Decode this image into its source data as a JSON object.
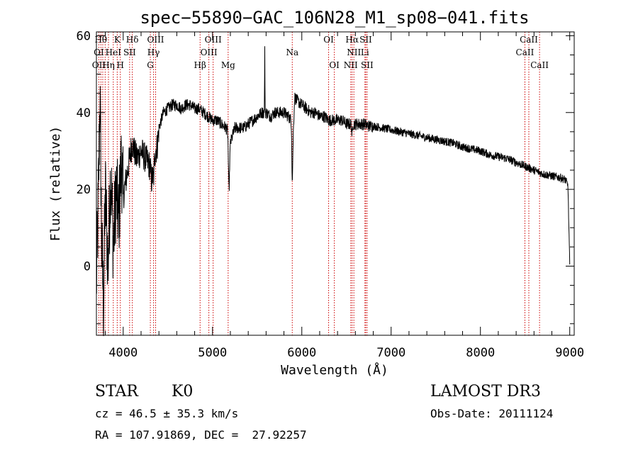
{
  "chart_data": {
    "type": "line",
    "title": "spec−55890−GAC_106N28_M1_sp08−041.fits",
    "xlabel": "Wavelength (Å)",
    "ylabel": "Flux (relative)",
    "xlim": [
      3700,
      9050
    ],
    "ylim": [
      -18,
      61
    ],
    "xticks": [
      4000,
      5000,
      6000,
      7000,
      8000,
      9000
    ],
    "yticks": [
      0,
      20,
      40,
      60
    ],
    "series": [
      {
        "name": "flux",
        "anchors": [
          [
            3700,
            -5
          ],
          [
            3720,
            15
          ],
          [
            3740,
            45
          ],
          [
            3760,
            5
          ],
          [
            3780,
            -10
          ],
          [
            3800,
            20
          ],
          [
            3830,
            0
          ],
          [
            3860,
            25
          ],
          [
            3890,
            5
          ],
          [
            3920,
            20
          ],
          [
            3950,
            12
          ],
          [
            3980,
            28
          ],
          [
            4000,
            18
          ],
          [
            4050,
            25
          ],
          [
            4100,
            32
          ],
          [
            4150,
            28
          ],
          [
            4200,
            30
          ],
          [
            4250,
            28
          ],
          [
            4300,
            26
          ],
          [
            4320,
            22
          ],
          [
            4340,
            29
          ],
          [
            4380,
            31
          ],
          [
            4400,
            36
          ],
          [
            4450,
            40
          ],
          [
            4500,
            41
          ],
          [
            4550,
            42
          ],
          [
            4600,
            42
          ],
          [
            4650,
            41
          ],
          [
            4700,
            42
          ],
          [
            4750,
            42
          ],
          [
            4800,
            41
          ],
          [
            4850,
            41
          ],
          [
            4900,
            40
          ],
          [
            4950,
            39
          ],
          [
            5000,
            38
          ],
          [
            5050,
            38
          ],
          [
            5100,
            37
          ],
          [
            5150,
            36
          ],
          [
            5175,
            35
          ],
          [
            5190,
            28
          ],
          [
            5200,
            32
          ],
          [
            5250,
            36
          ],
          [
            5300,
            36
          ],
          [
            5350,
            36
          ],
          [
            5400,
            37
          ],
          [
            5450,
            38
          ],
          [
            5500,
            39
          ],
          [
            5550,
            40
          ],
          [
            5600,
            40
          ],
          [
            5650,
            39
          ],
          [
            5700,
            40
          ],
          [
            5750,
            40
          ],
          [
            5800,
            40
          ],
          [
            5850,
            39
          ],
          [
            5880,
            38
          ],
          [
            5900,
            32
          ],
          [
            5920,
            44
          ],
          [
            5950,
            43
          ],
          [
            6000,
            42
          ],
          [
            6050,
            41
          ],
          [
            6100,
            40
          ],
          [
            6150,
            40
          ],
          [
            6200,
            39
          ],
          [
            6250,
            39
          ],
          [
            6300,
            38
          ],
          [
            6350,
            38
          ],
          [
            6400,
            38
          ],
          [
            6450,
            38
          ],
          [
            6500,
            37
          ],
          [
            6550,
            37
          ],
          [
            6600,
            37
          ],
          [
            6650,
            37
          ],
          [
            6700,
            37
          ],
          [
            6750,
            36.5
          ],
          [
            6800,
            36.5
          ],
          [
            6900,
            36
          ],
          [
            7000,
            35.5
          ],
          [
            7100,
            35
          ],
          [
            7200,
            34.5
          ],
          [
            7300,
            34
          ],
          [
            7400,
            33.5
          ],
          [
            7500,
            33
          ],
          [
            7600,
            32.5
          ],
          [
            7700,
            32
          ],
          [
            7800,
            31
          ],
          [
            7900,
            30.5
          ],
          [
            8000,
            30
          ],
          [
            8100,
            29
          ],
          [
            8200,
            28.5
          ],
          [
            8300,
            28
          ],
          [
            8400,
            27
          ],
          [
            8500,
            26
          ],
          [
            8600,
            25
          ],
          [
            8700,
            24
          ],
          [
            8800,
            23.5
          ],
          [
            8900,
            23
          ],
          [
            8950,
            22.5
          ],
          [
            8980,
            21
          ],
          [
            9000,
            0
          ]
        ],
        "narrow_features": [
          {
            "center": 5585,
            "depth": -16,
            "width": 3
          },
          {
            "center": 5893,
            "depth": 12,
            "width": 6
          },
          {
            "center": 5183,
            "depth": 11,
            "width": 8
          },
          {
            "center": 4340,
            "depth": 6,
            "width": 10
          },
          {
            "center": 6563,
            "depth": 3,
            "width": 6
          }
        ]
      }
    ],
    "line_markers": {
      "color": "#cc0000",
      "wavelengths": [
        3727,
        3750,
        3771,
        3798,
        3835,
        3889,
        3933,
        3968,
        4072,
        4102,
        4304,
        4340,
        4363,
        4861,
        4959,
        5007,
        5175,
        5893,
        6300,
        6364,
        6548,
        6563,
        6583,
        6707,
        6716,
        6731,
        8498,
        8542,
        8662
      ],
      "labels": [
        {
          "text": "Hθ",
          "x": 3750,
          "row": 0
        },
        {
          "text": "K",
          "x": 3933,
          "row": 0
        },
        {
          "text": "Hδ",
          "x": 4102,
          "row": 0
        },
        {
          "text": "OIII",
          "x": 4363,
          "row": 0
        },
        {
          "text": "OIII",
          "x": 5007,
          "row": 0
        },
        {
          "text": "OI",
          "x": 6300,
          "row": 0
        },
        {
          "text": "Hα",
          "x": 6563,
          "row": 0
        },
        {
          "text": "SII",
          "x": 6716,
          "row": 0
        },
        {
          "text": "CaII",
          "x": 8542,
          "row": 0
        },
        {
          "text": "OI",
          "x": 3727,
          "row": 1
        },
        {
          "text": "HeI",
          "x": 3889,
          "row": 1
        },
        {
          "text": "SII",
          "x": 4072,
          "row": 1
        },
        {
          "text": "Hγ",
          "x": 4340,
          "row": 1
        },
        {
          "text": "OIII",
          "x": 4959,
          "row": 1
        },
        {
          "text": "Na",
          "x": 5893,
          "row": 1
        },
        {
          "text": "NII",
          "x": 6583,
          "row": 1
        },
        {
          "text": "Li",
          "x": 6707,
          "row": 1
        },
        {
          "text": "CaII",
          "x": 8498,
          "row": 1
        },
        {
          "text": "OII",
          "x": 3727,
          "row": 2
        },
        {
          "text": "Hη",
          "x": 3835,
          "row": 2
        },
        {
          "text": "H",
          "x": 3968,
          "row": 2
        },
        {
          "text": "G",
          "x": 4304,
          "row": 2
        },
        {
          "text": "Hβ",
          "x": 4861,
          "row": 2
        },
        {
          "text": "Mg",
          "x": 5175,
          "row": 2
        },
        {
          "text": "OI",
          "x": 6364,
          "row": 2
        },
        {
          "text": "NII",
          "x": 6548,
          "row": 2
        },
        {
          "text": "SII",
          "x": 6731,
          "row": 2
        },
        {
          "text": "CaII",
          "x": 8662,
          "row": 2
        }
      ]
    }
  },
  "info": {
    "object_class": "STAR",
    "subclass": "K0",
    "survey": "LAMOST DR3",
    "cz": "cz = 46.5 ± 35.3 km/s",
    "obs_date": "Obs-Date: 20111124",
    "coords": "RA = 107.91869, DEC =  27.92257"
  }
}
